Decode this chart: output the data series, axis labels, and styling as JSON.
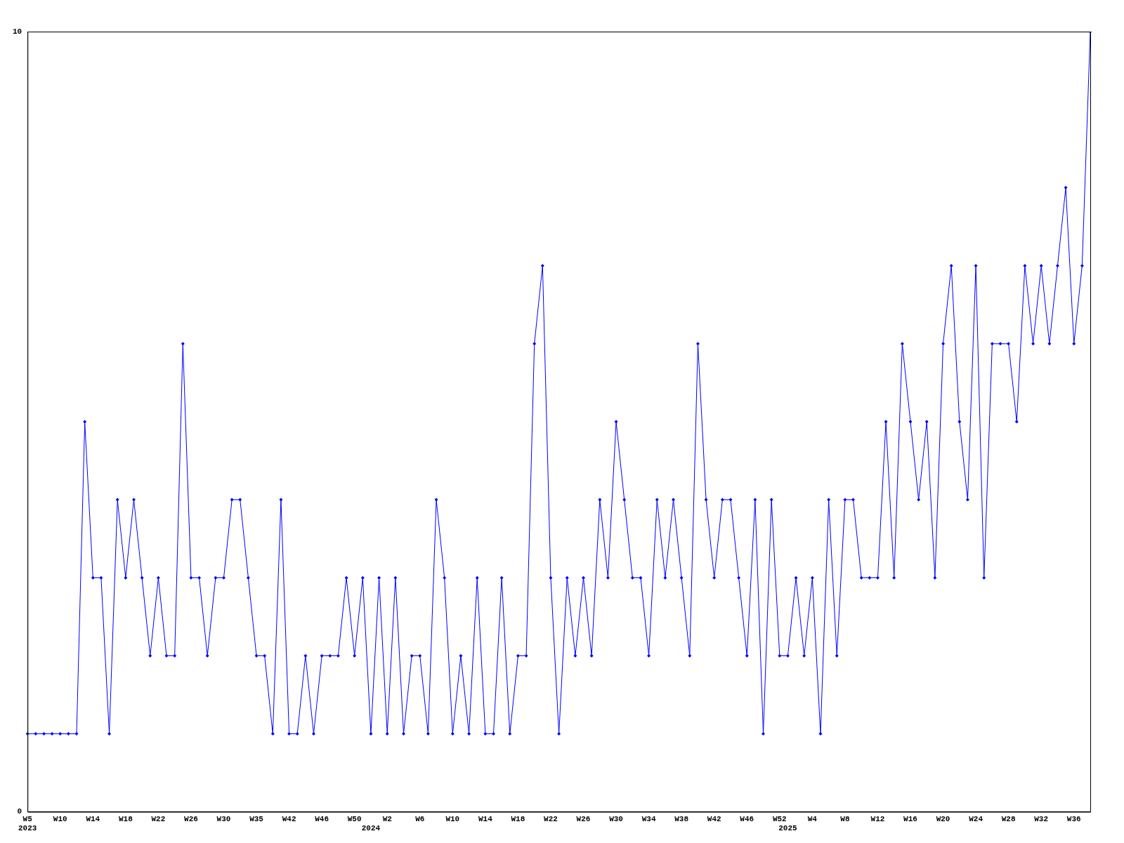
{
  "chart_data": {
    "type": "line",
    "categories": [
      "W5\n2023",
      null,
      null,
      null,
      "W10",
      null,
      null,
      null,
      "W14",
      null,
      null,
      null,
      "W18",
      null,
      null,
      null,
      "W22",
      null,
      null,
      null,
      "W26",
      null,
      null,
      null,
      "W30",
      null,
      null,
      null,
      "W35",
      null,
      null,
      null,
      "W42",
      null,
      null,
      null,
      "W46",
      null,
      null,
      null,
      "W50",
      null,
      "\n2024",
      null,
      "W2",
      null,
      null,
      null,
      "W6",
      null,
      null,
      null,
      "W10",
      null,
      null,
      null,
      "W14",
      null,
      null,
      null,
      "W18",
      null,
      null,
      null,
      "W22",
      null,
      null,
      null,
      "W26",
      null,
      null,
      null,
      "W30",
      null,
      null,
      null,
      "W34",
      null,
      null,
      null,
      "W38",
      null,
      null,
      null,
      "W42",
      null,
      null,
      null,
      "W46",
      null,
      null,
      null,
      "W52",
      "\n2025",
      null,
      null,
      "W4",
      null,
      null,
      null,
      "W8",
      null,
      null,
      null,
      "W12",
      null,
      null,
      null,
      "W16",
      null,
      null,
      null,
      "W20",
      null,
      null,
      null,
      "W24",
      null,
      null,
      null,
      "W28",
      null,
      null,
      null,
      "W32",
      null,
      null,
      null,
      "W36",
      null,
      null
    ],
    "series": [
      {
        "color": "#0000ff",
        "values": [
          1,
          1,
          1,
          1,
          1,
          1,
          1,
          5,
          3,
          3,
          1,
          4,
          3,
          4,
          3,
          2,
          3,
          2,
          2,
          6,
          3,
          3,
          2,
          3,
          3,
          4,
          4,
          3,
          2,
          2,
          1,
          4,
          1,
          1,
          2,
          1,
          2,
          2,
          2,
          3,
          2,
          3,
          1,
          3,
          1,
          3,
          1,
          2,
          2,
          1,
          4,
          3,
          1,
          2,
          1,
          3,
          1,
          1,
          3,
          1,
          2,
          2,
          6,
          7,
          3,
          1,
          3,
          2,
          3,
          2,
          4,
          3,
          5,
          4,
          3,
          3,
          2,
          4,
          3,
          4,
          3,
          2,
          6,
          4,
          3,
          4,
          4,
          3,
          2,
          4,
          1,
          4,
          2,
          2,
          3,
          2,
          3,
          1,
          4,
          2,
          4,
          4,
          3,
          3,
          3,
          5,
          3,
          6,
          5,
          4,
          5,
          3,
          6,
          7,
          5,
          4,
          7,
          3,
          6,
          6,
          6,
          5,
          7,
          6,
          7,
          6,
          7,
          8,
          6,
          7,
          10
        ]
      }
    ],
    "ylim": [
      0,
      10
    ],
    "yticks": [
      0,
      10
    ],
    "grid": false,
    "legend": false,
    "marker": "diamond",
    "line_style": "solid"
  }
}
